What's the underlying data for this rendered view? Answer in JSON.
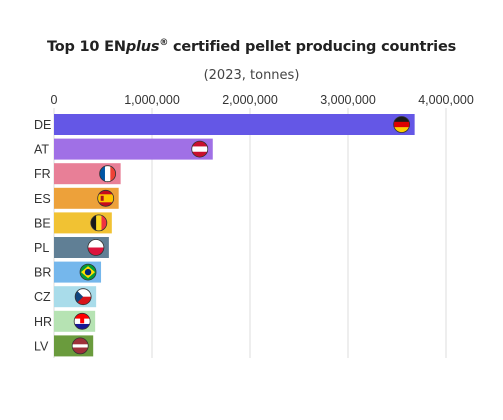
{
  "header": {
    "title_prefix": "Top 10 EN",
    "title_brand_italic": "plus",
    "title_reg": "®",
    "title_suffix": " certified pellet producing countries",
    "subtitle": "(2023, tonnes)"
  },
  "chart_data": {
    "type": "bar",
    "orientation": "horizontal",
    "title": "Top 10 ENplus® certified pellet producing countries",
    "subtitle": "(2023, tonnes)",
    "categories": [
      "DE",
      "AT",
      "FR",
      "ES",
      "BE",
      "PL",
      "BR",
      "CZ",
      "HR",
      "LV"
    ],
    "values": [
      3680000,
      1620000,
      680000,
      660000,
      590000,
      560000,
      480000,
      430000,
      420000,
      400000
    ],
    "bar_colors": [
      "#6457e6",
      "#a070e6",
      "#e87f97",
      "#eda13a",
      "#f1c233",
      "#607f95",
      "#75b7ec",
      "#a9dcea",
      "#b6e3b3",
      "#6a9b3d"
    ],
    "flags": [
      "Germany",
      "Austria",
      "France",
      "Spain",
      "Belgium",
      "Poland",
      "Brazil",
      "Czech Republic",
      "Croatia",
      "Latvia"
    ],
    "xlim": [
      0,
      4000000
    ],
    "xticks": [
      0,
      1000000,
      2000000,
      3000000,
      4000000
    ],
    "xtick_labels": [
      "0",
      "1,000,000",
      "2,000,000",
      "3,000,000",
      "4,000,000"
    ],
    "grid": true,
    "x_axis_position": "top"
  }
}
